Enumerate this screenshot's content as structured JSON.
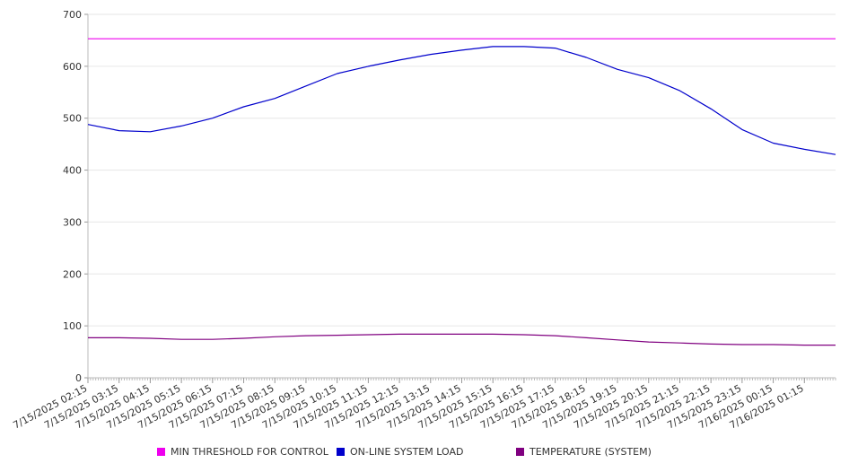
{
  "chart_data": {
    "type": "line",
    "title": "",
    "xlabel": "",
    "ylabel": "",
    "ylim": [
      0,
      700
    ],
    "yticks": [
      0,
      100,
      200,
      300,
      400,
      500,
      600,
      700
    ],
    "grid": true,
    "legend_position": "bottom",
    "x_tick_labels": [
      "7/15/2025 02:15",
      "7/15/2025 03:15",
      "7/15/2025 04:15",
      "7/15/2025 05:15",
      "7/15/2025 06:15",
      "7/15/2025 07:15",
      "7/15/2025 08:15",
      "7/15/2025 09:15",
      "7/15/2025 10:15",
      "7/15/2025 11:15",
      "7/15/2025 12:15",
      "7/15/2025 13:15",
      "7/15/2025 14:15",
      "7/15/2025 15:15",
      "7/15/2025 16:15",
      "7/15/2025 17:15",
      "7/15/2025 18:15",
      "7/15/2025 19:15",
      "7/15/2025 20:15",
      "7/15/2025 21:15",
      "7/15/2025 22:15",
      "7/15/2025 23:15",
      "7/16/2025 00:15",
      "7/16/2025 01:15"
    ],
    "series": [
      {
        "name": "MIN THRESHOLD FOR CONTROL",
        "color": "#ee00ee",
        "values": [
          653,
          653,
          653,
          653,
          653,
          653,
          653,
          653,
          653,
          653,
          653,
          653,
          653,
          653,
          653,
          653,
          653,
          653,
          653,
          653,
          653,
          653,
          653,
          653,
          653
        ]
      },
      {
        "name": "ON-LINE SYSTEM LOAD",
        "color": "#0000cc",
        "values": [
          488,
          476,
          474,
          485,
          500,
          522,
          538,
          562,
          586,
          600,
          612,
          623,
          631,
          638,
          638,
          635,
          617,
          594,
          578,
          553,
          518,
          478,
          452,
          440,
          430
        ]
      },
      {
        "name": "TEMPERATURE (SYSTEM)",
        "color": "#800080",
        "values": [
          77,
          77,
          76,
          74,
          74,
          76,
          79,
          81,
          82,
          83,
          84,
          84,
          84,
          84,
          83,
          81,
          77,
          73,
          69,
          67,
          65,
          64,
          64,
          63,
          63
        ]
      }
    ]
  }
}
